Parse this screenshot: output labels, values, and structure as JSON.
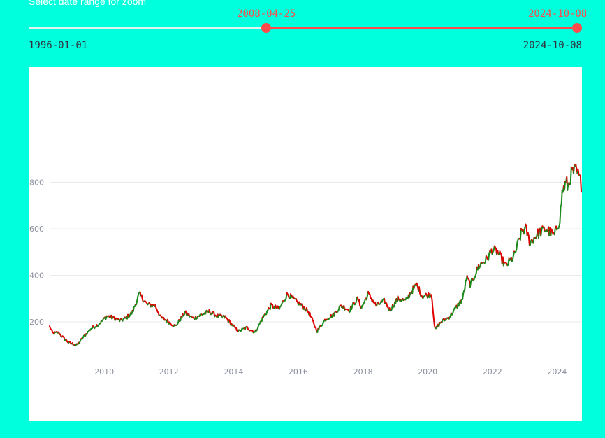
{
  "slider": {
    "label": "Select date range for zoom",
    "min": "1996-01-01",
    "max": "2024-10-08",
    "selected_start": "2008-04-25",
    "selected_end": "2024-10-08"
  },
  "colors": {
    "background": "#00ffdd",
    "accent": "#ff4b4b",
    "increasing": "#1a8a1a",
    "decreasing": "#e00000"
  },
  "chart_data": {
    "type": "line",
    "title": "",
    "xlabel": "",
    "ylabel": "",
    "xlim": [
      "2008-04-25",
      "2024-10-08"
    ],
    "ylim": [
      0,
      1000
    ],
    "grid": true,
    "x_ticks": [
      "2010",
      "2012",
      "2014",
      "2016",
      "2018",
      "2020",
      "2022",
      "2024"
    ],
    "y_ticks": [
      200,
      400,
      600,
      800
    ],
    "series": [
      {
        "color_up": "#1a8a1a",
        "color_down": "#e00000",
        "x": [
          "2008-04-25",
          "2008-06-01",
          "2008-08-01",
          "2008-10-01",
          "2008-12-01",
          "2009-03-01",
          "2009-05-01",
          "2009-08-01",
          "2009-11-01",
          "2010-02-01",
          "2010-05-01",
          "2010-07-01",
          "2010-09-01",
          "2010-11-15",
          "2011-02-01",
          "2011-05-01",
          "2011-08-01",
          "2011-10-01",
          "2012-01-01",
          "2012-03-15",
          "2012-07-01",
          "2012-10-01",
          "2013-01-01",
          "2013-04-01",
          "2013-07-01",
          "2013-10-01",
          "2014-01-01",
          "2014-03-01",
          "2014-06-01",
          "2014-09-01",
          "2014-12-01",
          "2015-03-01",
          "2015-06-01",
          "2015-09-01",
          "2015-12-01",
          "2016-03-01",
          "2016-05-01",
          "2016-08-01",
          "2016-11-01",
          "2017-02-01",
          "2017-05-01",
          "2017-08-01",
          "2017-11-01",
          "2017-12-15",
          "2018-03-01",
          "2018-06-01",
          "2018-09-01",
          "2018-11-01",
          "2019-02-01",
          "2019-05-01",
          "2019-07-01",
          "2019-09-01",
          "2019-11-01",
          "2020-02-15",
          "2020-03-23",
          "2020-06-01",
          "2020-09-01",
          "2020-11-15",
          "2021-02-01",
          "2021-03-15",
          "2021-05-01",
          "2021-08-01",
          "2021-11-01",
          "2022-01-01",
          "2022-03-01",
          "2022-06-01",
          "2022-09-01",
          "2022-12-01",
          "2023-01-15",
          "2023-03-01",
          "2023-06-01",
          "2023-09-01",
          "2023-12-01",
          "2024-02-01",
          "2024-03-01",
          "2024-04-15",
          "2024-05-01",
          "2024-06-15",
          "2024-08-01",
          "2024-10-08"
        ],
        "values": [
          180,
          150,
          155,
          130,
          110,
          100,
          130,
          170,
          190,
          225,
          215,
          205,
          215,
          240,
          320,
          275,
          270,
          220,
          200,
          180,
          240,
          215,
          230,
          245,
          225,
          220,
          180,
          160,
          175,
          155,
          220,
          270,
          255,
          320,
          290,
          265,
          240,
          160,
          210,
          230,
          270,
          250,
          300,
          260,
          320,
          270,
          290,
          250,
          300,
          290,
          330,
          360,
          310,
          320,
          165,
          200,
          220,
          260,
          300,
          390,
          360,
          440,
          470,
          510,
          500,
          440,
          480,
          590,
          600,
          540,
          580,
          600,
          570,
          640,
          760,
          800,
          780,
          840,
          850,
          790
        ]
      }
    ]
  }
}
